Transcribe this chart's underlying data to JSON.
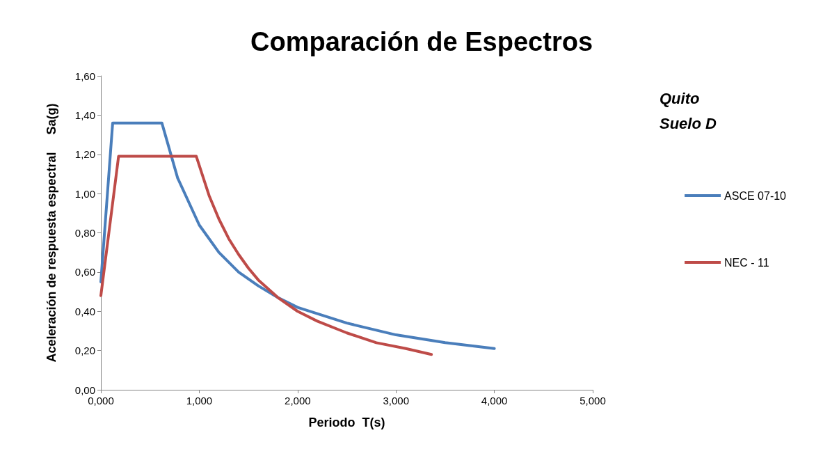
{
  "chart_data": {
    "type": "line",
    "title": "Comparación de Espectros",
    "xlabel": "Periodo  T(s)",
    "ylabel": "Aceleración de respuesta espectral     Sa(g)",
    "annotations": [
      "Quito",
      "Suelo D"
    ],
    "series": [
      {
        "name": "ASCE 07-10",
        "color": "#4a7ebb",
        "x": [
          0,
          0.12,
          0.62,
          0.78,
          1.0,
          1.2,
          1.4,
          1.6,
          1.8,
          2.0,
          2.5,
          3.0,
          3.5,
          4.0
        ],
        "values": [
          0.55,
          1.36,
          1.36,
          1.08,
          0.84,
          0.7,
          0.6,
          0.53,
          0.47,
          0.42,
          0.34,
          0.28,
          0.24,
          0.21
        ]
      },
      {
        "name": "NEC - 11",
        "color": "#be4b48",
        "x": [
          0,
          0.18,
          0.97,
          1.1,
          1.2,
          1.3,
          1.4,
          1.5,
          1.6,
          1.8,
          2.0,
          2.2,
          2.5,
          2.8,
          3.1,
          3.36
        ],
        "values": [
          0.48,
          1.19,
          1.19,
          0.99,
          0.87,
          0.77,
          0.69,
          0.62,
          0.56,
          0.47,
          0.4,
          0.35,
          0.29,
          0.24,
          0.21,
          0.18
        ]
      }
    ],
    "xlim": [
      0,
      5
    ],
    "xticks": [
      {
        "value": 0,
        "label": "0,000"
      },
      {
        "value": 1,
        "label": "1,000"
      },
      {
        "value": 2,
        "label": "2,000"
      },
      {
        "value": 3,
        "label": "3,000"
      },
      {
        "value": 4,
        "label": "4,000"
      },
      {
        "value": 5,
        "label": "5,000"
      }
    ],
    "ylim": [
      0,
      1.6
    ],
    "yticks": [
      {
        "value": 0,
        "label": "0,00"
      },
      {
        "value": 0.2,
        "label": "0,20"
      },
      {
        "value": 0.4,
        "label": "0,40"
      },
      {
        "value": 0.6,
        "label": "0,60"
      },
      {
        "value": 0.8,
        "label": "0,80"
      },
      {
        "value": 1.0,
        "label": "1,00"
      },
      {
        "value": 1.2,
        "label": "1,20"
      },
      {
        "value": 1.4,
        "label": "1,40"
      },
      {
        "value": 1.6,
        "label": "1,60"
      }
    ],
    "grid": false,
    "legend": "right",
    "marker": "none",
    "line_style": "solid"
  }
}
